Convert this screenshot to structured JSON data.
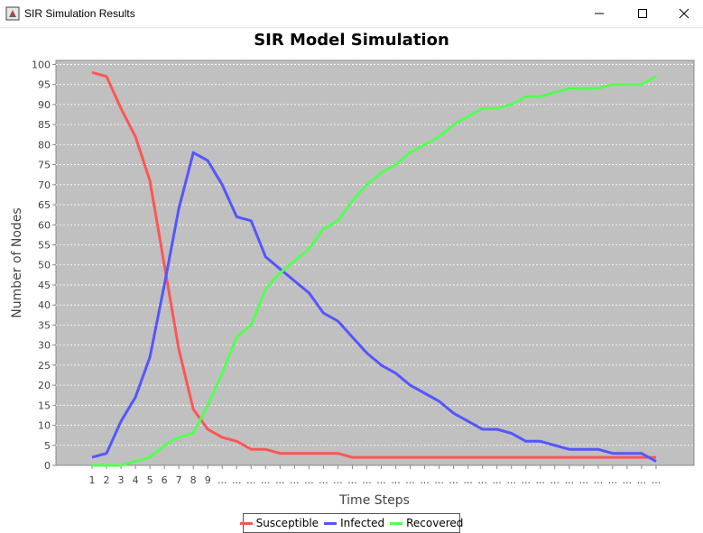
{
  "window": {
    "title": "SIR Simulation Results"
  },
  "colors": {
    "plot_background": "#c0c0c0",
    "grid": "#ffffff",
    "susceptible": "#ff5555",
    "infected": "#5555ff",
    "recovered": "#55ff55"
  },
  "chart_data": {
    "type": "line",
    "title": "SIR Model Simulation",
    "xlabel": "Time Steps",
    "ylabel": "Number of Nodes",
    "ylim": [
      0,
      101
    ],
    "yticks": [
      0,
      5,
      10,
      15,
      20,
      25,
      30,
      35,
      40,
      45,
      50,
      55,
      60,
      65,
      70,
      75,
      80,
      85,
      90,
      95,
      100
    ],
    "x_tick_labels": [
      "1",
      "2",
      "3",
      "4",
      "5",
      "6",
      "7",
      "8",
      "9",
      "...",
      "...",
      "...",
      "...",
      "...",
      "...",
      "...",
      "...",
      "...",
      "...",
      "...",
      "...",
      "...",
      "...",
      "...",
      "...",
      "...",
      "...",
      "...",
      "...",
      "...",
      "...",
      "...",
      "...",
      "...",
      "...",
      "...",
      "...",
      "...",
      "...",
      "..."
    ],
    "grid": true,
    "legend_position": "bottom",
    "series": [
      {
        "name": "Susceptible",
        "color": "#ff5555",
        "values": [
          98,
          97,
          89,
          82,
          71,
          50,
          29,
          14,
          9,
          7,
          6,
          4,
          4,
          3,
          3,
          3,
          3,
          3,
          2,
          2,
          2,
          2,
          2,
          2,
          2,
          2,
          2,
          2,
          2,
          2,
          2,
          2,
          2,
          2,
          2,
          2,
          2,
          2,
          2,
          2
        ]
      },
      {
        "name": "Infected",
        "color": "#5555ff",
        "values": [
          2,
          3,
          11,
          17,
          27,
          45,
          64,
          78,
          76,
          70,
          62,
          61,
          52,
          49,
          46,
          43,
          38,
          36,
          32,
          28,
          25,
          23,
          20,
          18,
          16,
          13,
          11,
          9,
          9,
          8,
          6,
          6,
          5,
          4,
          4,
          4,
          3,
          3,
          3,
          1
        ]
      },
      {
        "name": "Recovered",
        "color": "#55ff55",
        "values": [
          0,
          0,
          0,
          1,
          2,
          5,
          7,
          8,
          15,
          23,
          32,
          35,
          44,
          48,
          51,
          54,
          59,
          61,
          66,
          70,
          73,
          75,
          78,
          80,
          82,
          85,
          87,
          89,
          89,
          90,
          92,
          92,
          93,
          94,
          94,
          94,
          95,
          95,
          95,
          97
        ]
      }
    ]
  }
}
